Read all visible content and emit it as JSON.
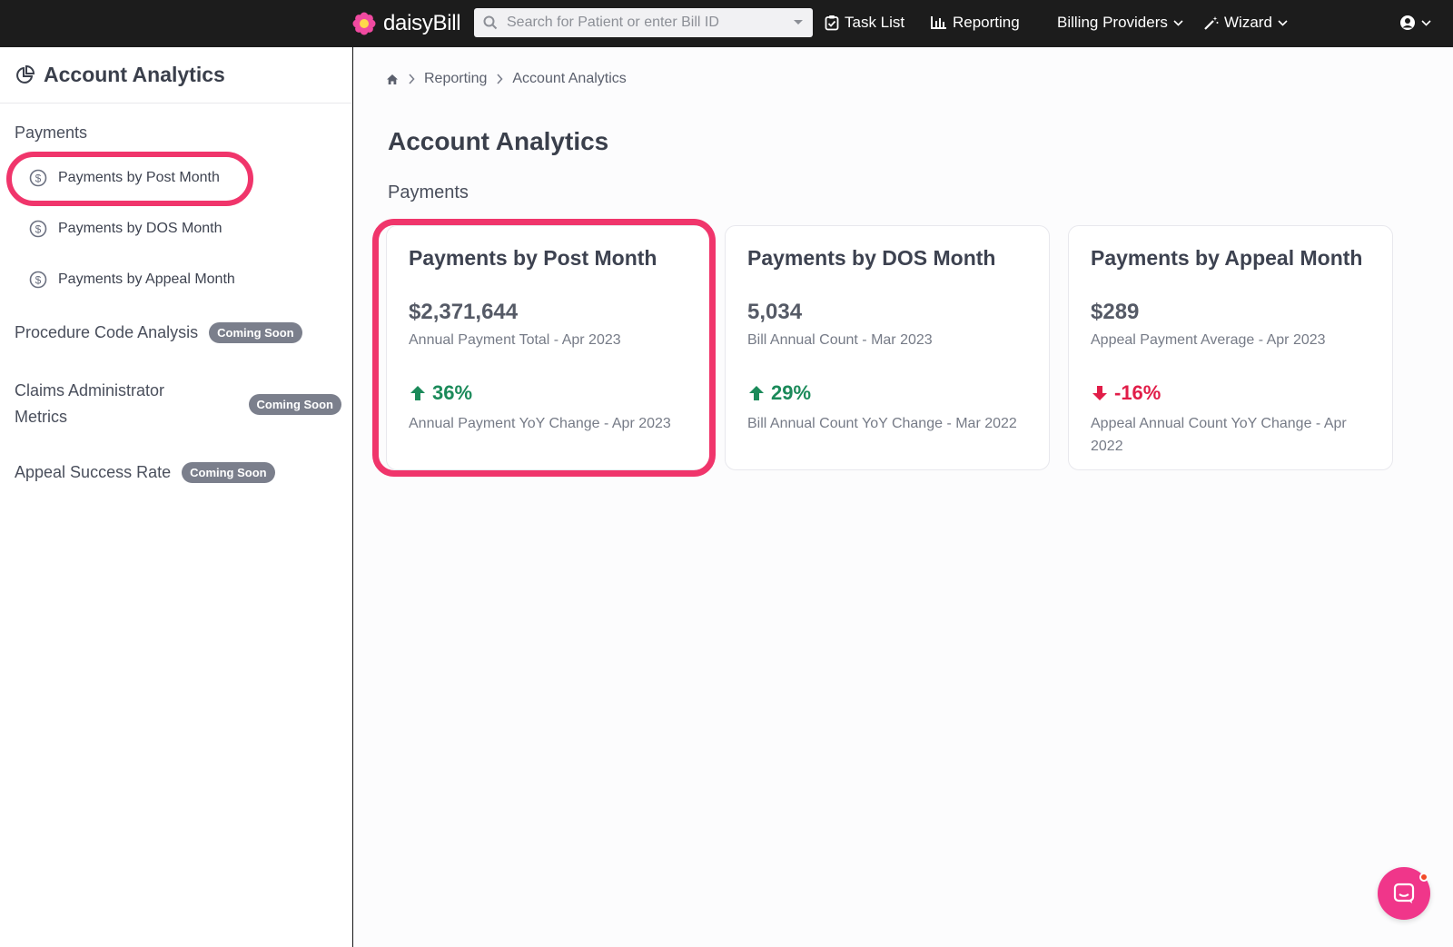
{
  "topbar": {
    "brand": "daisyBill",
    "search_placeholder": "Search for Patient or enter Bill ID",
    "nav": [
      "Task List",
      "Reporting",
      "Billing Providers",
      "Wizard"
    ]
  },
  "sidebar": {
    "title": "Account Analytics",
    "section": "Payments",
    "items": [
      "Payments by Post Month",
      "Payments by DOS Month",
      "Payments by Appeal Month"
    ],
    "groups": [
      {
        "label": "Procedure Code Analysis",
        "badge": "Coming Soon"
      },
      {
        "label_line1": "Claims Administrator",
        "label_line2": "Metrics",
        "badge": "Coming Soon"
      },
      {
        "label": "Appeal Success Rate",
        "badge": "Coming Soon"
      }
    ]
  },
  "breadcrumb": [
    "Reporting",
    "Account Analytics"
  ],
  "main": {
    "title": "Account Analytics",
    "section": "Payments",
    "cards": [
      {
        "title": "Payments by Post Month",
        "value": "$2,371,644",
        "value_label": "Annual Payment Total - Apr 2023",
        "change": "36%",
        "change_label": "Annual Payment YoY Change - Apr 2023"
      },
      {
        "title": "Payments by DOS Month",
        "value": "5,034",
        "value_label": "Bill Annual Count - Mar 2023",
        "change": "29%",
        "change_label": "Bill Annual Count YoY Change - Mar 2022"
      },
      {
        "title": "Payments by Appeal Month",
        "value": "$289",
        "value_label": "Appeal Payment Average - Apr 2023",
        "change": "-16%",
        "change_label": "Appeal Annual Count YoY Change - Apr 2022"
      }
    ]
  },
  "colors": {
    "accent": "#f0356b",
    "positive": "#1b8a5a",
    "negative": "#e11d48",
    "topbar": "#1c1c1c"
  }
}
